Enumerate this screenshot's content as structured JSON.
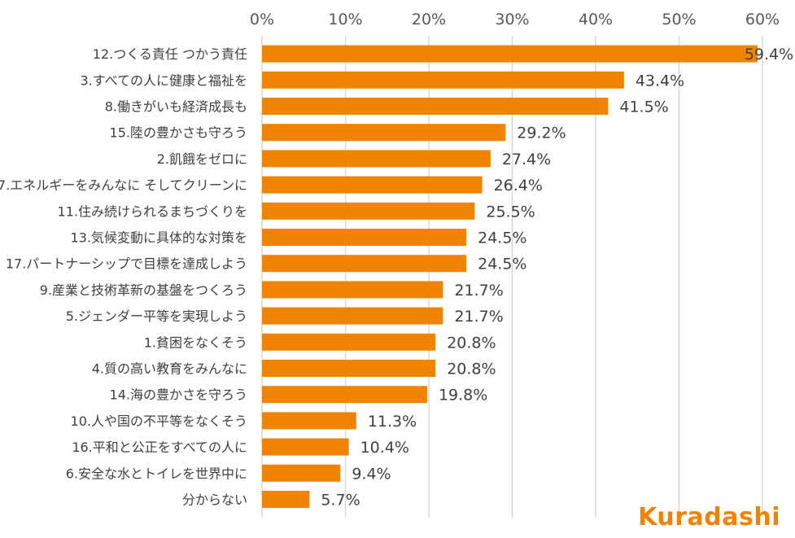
{
  "chart_data": {
    "type": "bar",
    "orientation": "horizontal",
    "title": "",
    "xlabel": "",
    "ylabel": "",
    "xlim": [
      0,
      60
    ],
    "x_ticks": [
      "0%",
      "10%",
      "20%",
      "30%",
      "40%",
      "50%",
      "60%"
    ],
    "x_tick_values": [
      0,
      10,
      20,
      30,
      40,
      50,
      60
    ],
    "grid": true,
    "legend": "none",
    "bar_color": "#f08300",
    "categories": [
      "12.つくる責任 つかう責任",
      "3.すべての人に健康と福祉を",
      "8.働きがいも経済成長も",
      "15.陸の豊かさも守ろう",
      "2.飢餓をゼロに",
      "7.エネルギーをみんなに そしてクリーンに",
      "11.住み続けられるまちづくりを",
      "13.気候変動に具体的な対策を",
      "17.パートナーシップで目標を達成しよう",
      "9.産業と技術革新の基盤をつくろう",
      "5.ジェンダー平等を実現しよう",
      "1.貧困をなくそう",
      "4.質の高い教育をみんなに",
      "14.海の豊かさを守ろう",
      "10.人や国の不平等をなくそう",
      "16.平和と公正をすべての人に",
      "6.安全な水とトイレを世界中に",
      "分からない"
    ],
    "values": [
      59.4,
      43.4,
      41.5,
      29.2,
      27.4,
      26.4,
      25.5,
      24.5,
      24.5,
      21.7,
      21.7,
      20.8,
      20.8,
      19.8,
      11.3,
      10.4,
      9.4,
      5.7
    ],
    "value_labels": [
      "59.4%",
      "43.4%",
      "41.5%",
      "29.2%",
      "27.4%",
      "26.4%",
      "25.5%",
      "24.5%",
      "24.5%",
      "21.7%",
      "21.7%",
      "20.8%",
      "20.8%",
      "19.8%",
      "11.3%",
      "10.4%",
      "9.4%",
      "5.7%"
    ]
  },
  "brand": {
    "name": "Kuradashi",
    "color": "#f08300"
  }
}
